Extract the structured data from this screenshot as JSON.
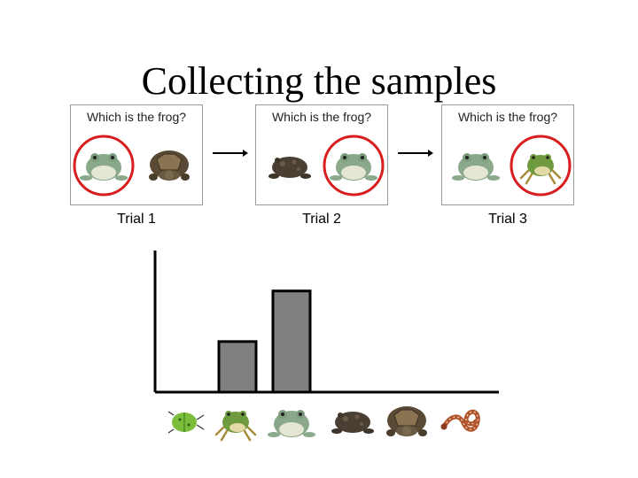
{
  "title": "Collecting the samples",
  "trials": [
    {
      "question": "Which is the frog?",
      "label": "Trial 1",
      "left_animal": "frog-icon",
      "right_animal": "turtle-icon",
      "circled": "left"
    },
    {
      "question": "Which is the frog?",
      "label": "Trial 2",
      "left_animal": "toad-icon",
      "right_animal": "frog-icon",
      "circled": "right"
    },
    {
      "question": "Which is the frog?",
      "label": "Trial 3",
      "left_animal": "frog-icon",
      "right_animal": "tree-frog-icon",
      "circled": "right"
    }
  ],
  "colors": {
    "circle": "#d81e1e",
    "bar": "#808080",
    "axis": "#000000"
  },
  "chart_data": {
    "type": "bar",
    "categories": [
      "beetle",
      "tree-frog",
      "frog",
      "toad",
      "turtle",
      "snake"
    ],
    "category_icons": [
      "beetle-icon",
      "tree-frog-icon",
      "frog-icon",
      "toad-icon",
      "turtle-icon",
      "snake-icon"
    ],
    "values": [
      0,
      1,
      2,
      0,
      0,
      0
    ],
    "ylim": [
      0,
      2.8
    ],
    "grid": false,
    "title": "",
    "xlabel": "",
    "ylabel": ""
  }
}
